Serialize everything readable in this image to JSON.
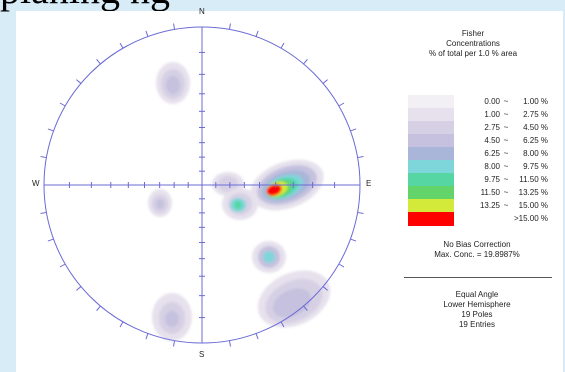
{
  "heading_fragment": "planing ng",
  "stereonet": {
    "directions": {
      "north": "N",
      "south": "S",
      "east": "E",
      "west": "W"
    },
    "poles": 19,
    "entries": 19
  },
  "legend": {
    "title_lines": [
      "Fisher",
      "Concentrations",
      "% of total per 1.0 % area"
    ],
    "bins": [
      {
        "low": "0.00",
        "sep": "~",
        "high": "1.00 %",
        "color": "#f2f0f4"
      },
      {
        "low": "1.00",
        "sep": "~",
        "high": "2.75 %",
        "color": "#e6e1ec"
      },
      {
        "low": "2.75",
        "sep": "~",
        "high": "4.50 %",
        "color": "#d6d0e4"
      },
      {
        "low": "4.50",
        "sep": "~",
        "high": "6.25 %",
        "color": "#c5c1de"
      },
      {
        "low": "6.25",
        "sep": "~",
        "high": "8.00 %",
        "color": "#a9b6da"
      },
      {
        "low": "8.00",
        "sep": "~",
        "high": "9.75 %",
        "color": "#7fd6da"
      },
      {
        "low": "9.75",
        "sep": "~",
        "high": "11.50 %",
        "color": "#55d6a2"
      },
      {
        "low": "11.50",
        "sep": "~",
        "high": "13.25 %",
        "color": "#62d46a"
      },
      {
        "low": "13.25",
        "sep": "~",
        "high": "15.00 %",
        "color": "#d3ea3a"
      },
      {
        "low": "",
        "sep": "",
        "high": ">15.00 %",
        "color": "#ff0000"
      }
    ]
  },
  "bias": {
    "correction": "No Bias Correction",
    "max_conc": "Max. Conc. = 19.8987%"
  },
  "projection": {
    "lines": [
      "Equal Angle",
      "Lower Hemisphere",
      "19 Poles",
      "19 Entries"
    ]
  },
  "colors": {
    "net_outline": "#6b6bd6",
    "background": "#d7ecf6"
  }
}
